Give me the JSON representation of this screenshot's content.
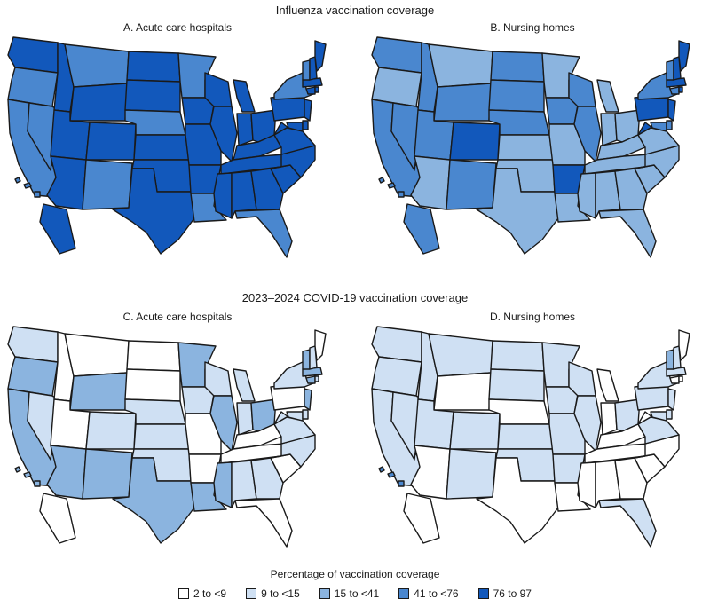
{
  "influenza_title": "Influenza vaccination coverage",
  "covid_title": "2023–2024 COVID-19 vaccination coverage",
  "panels": [
    {
      "label": "A. Acute care hospitals",
      "shades": {
        "WA": 4,
        "OR": 3,
        "CA": 3,
        "NV": 3,
        "ID": 4,
        "MT": 3,
        "WY": 4,
        "UT": 4,
        "CO": 4,
        "AZ": 4,
        "NM": 3,
        "ND": 4,
        "SD": 4,
        "NE": 3,
        "KS": 4,
        "OK": 4,
        "TX": 4,
        "MN": 3,
        "IA": 4,
        "MO": 4,
        "AR": 4,
        "LA": 3,
        "WI": 4,
        "IL": 4,
        "MI": 4,
        "IN": 4,
        "OH": 4,
        "KY": 4,
        "TN": 4,
        "MS": 4,
        "AL": 4,
        "GA": 4,
        "FL": 3,
        "SC": 4,
        "NC": 4,
        "VA": 4,
        "WV": 4,
        "MD": 4,
        "DE": 4,
        "PA": 4,
        "NJ": 4,
        "NY": 3,
        "CT": 4,
        "RI": 4,
        "MA": 4,
        "VT": 3,
        "NH": 4,
        "ME": 4,
        "AK": 4,
        "HI": 3
      }
    },
    {
      "label": "B. Nursing homes",
      "shades": {
        "WA": 3,
        "OR": 2,
        "CA": 3,
        "NV": 3,
        "ID": 3,
        "MT": 2,
        "WY": 3,
        "UT": 3,
        "CO": 4,
        "AZ": 2,
        "NM": 3,
        "ND": 3,
        "SD": 3,
        "NE": 3,
        "KS": 2,
        "OK": 2,
        "TX": 2,
        "MN": 2,
        "IA": 3,
        "MO": 2,
        "AR": 4,
        "LA": 2,
        "WI": 3,
        "IL": 3,
        "MI": 2,
        "IN": 2,
        "OH": 2,
        "KY": 2,
        "TN": 2,
        "MS": 2,
        "AL": 2,
        "GA": 2,
        "FL": 2,
        "SC": 2,
        "NC": 2,
        "VA": 2,
        "WV": 4,
        "MD": 3,
        "DE": 3,
        "PA": 4,
        "NJ": 4,
        "NY": 3,
        "CT": 3,
        "RI": 4,
        "MA": 4,
        "VT": 3,
        "NH": 4,
        "ME": 4,
        "AK": 3,
        "HI": 3
      }
    },
    {
      "label": "C. Acute care hospitals",
      "shades": {
        "WA": 1,
        "OR": 2,
        "CA": 2,
        "NV": 1,
        "ID": 0,
        "MT": 0,
        "WY": 2,
        "UT": 0,
        "CO": 1,
        "AZ": 2,
        "NM": 2,
        "ND": 0,
        "SD": 0,
        "NE": 1,
        "KS": 1,
        "OK": 1,
        "TX": 2,
        "MN": 2,
        "IA": 1,
        "MO": 0,
        "AR": 0,
        "LA": 2,
        "WI": 1,
        "IL": 2,
        "MI": 1,
        "IN": 1,
        "OH": 2,
        "KY": 0,
        "TN": 0,
        "MS": 2,
        "AL": 1,
        "GA": 1,
        "FL": 0,
        "SC": 0,
        "NC": 1,
        "VA": 1,
        "WV": 1,
        "MD": 1,
        "DE": 1,
        "PA": 0,
        "NJ": 2,
        "NY": 1,
        "CT": 2,
        "RI": 1,
        "MA": 2,
        "VT": 2,
        "NH": 1,
        "ME": 0,
        "AK": 0,
        "HI": 2
      }
    },
    {
      "label": "D. Nursing homes",
      "shades": {
        "WA": 1,
        "OR": 1,
        "CA": 1,
        "NV": 1,
        "ID": 1,
        "MT": 1,
        "WY": 0,
        "UT": 1,
        "CO": 1,
        "AZ": 0,
        "NM": 1,
        "ND": 1,
        "SD": 1,
        "NE": 0,
        "KS": 1,
        "OK": 1,
        "TX": 0,
        "MN": 1,
        "IA": 1,
        "MO": 1,
        "AR": 1,
        "LA": 0,
        "WI": 1,
        "IL": 1,
        "MI": 0,
        "IN": 0,
        "OH": 1,
        "KY": 0,
        "TN": 0,
        "MS": 0,
        "AL": 0,
        "GA": 0,
        "FL": 1,
        "SC": 0,
        "NC": 0,
        "VA": 1,
        "WV": 0,
        "MD": 1,
        "DE": 1,
        "PA": 1,
        "NJ": 1,
        "NY": 1,
        "CT": 0,
        "RI": 0,
        "MA": 1,
        "VT": 2,
        "NH": 1,
        "ME": 0,
        "AK": 0,
        "HI": 3
      }
    }
  ],
  "legend": {
    "title": "Percentage of vaccination coverage",
    "items": [
      {
        "label": "2 to <9",
        "color": "#ffffff"
      },
      {
        "label": "9 to <15",
        "color": "#cfe0f3"
      },
      {
        "label": "15 to <41",
        "color": "#8bb4df"
      },
      {
        "label": "41 to <76",
        "color": "#4a87cf"
      },
      {
        "label": "76 to 97",
        "color": "#1258bb"
      }
    ]
  }
}
